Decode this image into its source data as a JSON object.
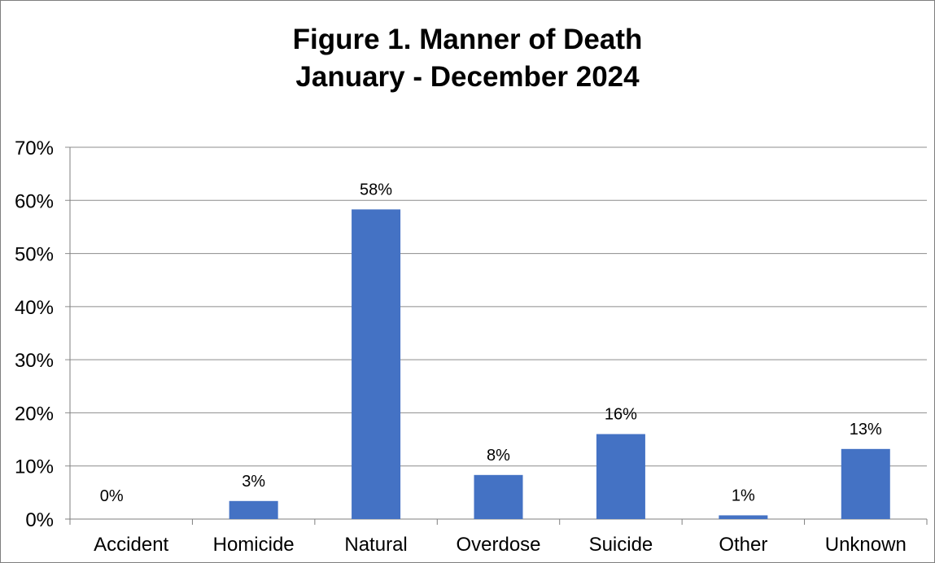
{
  "chart_data": {
    "type": "bar",
    "title_line1": "Figure 1. Manner of Death",
    "title_line2": "January - December 2024",
    "xlabel": "",
    "ylabel": "",
    "categories": [
      "Accident",
      "Homicide",
      "Natural",
      "Overdose",
      "Suicide",
      "Other",
      "Unknown"
    ],
    "values": [
      0,
      3.4,
      58.3,
      8.3,
      16.0,
      0.7,
      13.2
    ],
    "data_labels": [
      "0%",
      "3%",
      "58%",
      "8%",
      "16%",
      "1%",
      "13%"
    ],
    "ylim": [
      0,
      70
    ],
    "yticks": [
      0,
      10,
      20,
      30,
      40,
      50,
      60,
      70
    ],
    "ytick_labels": [
      "0%",
      "10%",
      "20%",
      "30%",
      "40%",
      "50%",
      "60%",
      "70%"
    ],
    "grid": true,
    "legend": "none",
    "colors": {
      "bar": "#4472c4",
      "grid": "#8c8c8c",
      "axis": "#7f7f7f"
    }
  }
}
